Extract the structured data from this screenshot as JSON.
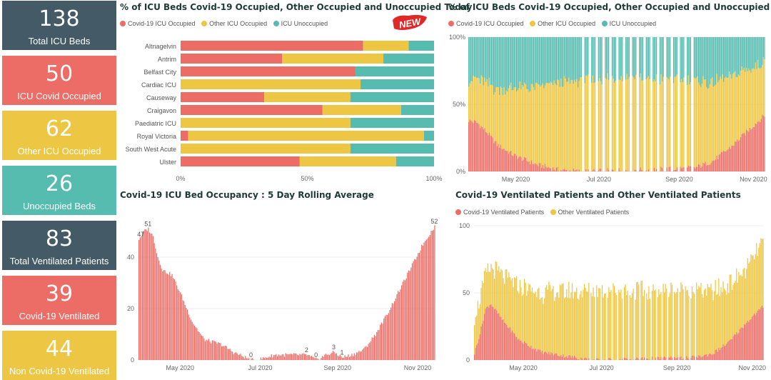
{
  "colors": {
    "covid": "#ec6d66",
    "other": "#edc743",
    "unoccupied": "#55bcaf",
    "dark": "#445a67"
  },
  "kpis": [
    {
      "value": "138",
      "label": "Total ICU Beds",
      "color": "#445a67"
    },
    {
      "value": "50",
      "label": "ICU Covid Occupied",
      "color": "#ec6d66"
    },
    {
      "value": "62",
      "label": "Other ICU Occupied",
      "color": "#edc743"
    },
    {
      "value": "26",
      "label": "Unoccupied Beds",
      "color": "#55bcaf"
    },
    {
      "value": "83",
      "label": "Total Ventilated Patients",
      "color": "#445a67"
    },
    {
      "value": "39",
      "label": "Covid-19 Ventilated",
      "color": "#ec6d66"
    },
    {
      "value": "44",
      "label": "Non Covid-19 Ventilated",
      "color": "#edc743"
    }
  ],
  "badge": "NEW",
  "chart_data": [
    {
      "id": "today",
      "type": "bar",
      "orientation": "horizontal",
      "stacked": "100%",
      "title": "% of ICU Beds Covid-19 Occupied, Other Occupied and Unoccupied Today",
      "legend": [
        "Covid-19 ICU Occupied",
        "Other ICU Occupied",
        "ICU Unoccupied"
      ],
      "categories": [
        "Altnagelvin",
        "Antrim",
        "Belfast City",
        "Cardiac ICU",
        "Causeway",
        "Craigavon",
        "Paediatric ICU",
        "Royal Victoria",
        "South West Acute",
        "Ulster"
      ],
      "series": [
        {
          "name": "Covid-19 ICU Occupied",
          "values": [
            72,
            40,
            69,
            0,
            33,
            56,
            0,
            3,
            0,
            47
          ]
        },
        {
          "name": "Other ICU Occupied",
          "values": [
            18,
            40,
            0,
            71,
            34,
            31,
            67,
            93,
            67,
            38
          ]
        },
        {
          "name": "ICU Unoccupied",
          "values": [
            10,
            20,
            31,
            29,
            33,
            13,
            33,
            4,
            33,
            15
          ]
        }
      ],
      "xticks": [
        "0%",
        "50%",
        "100%"
      ]
    },
    {
      "id": "pct_time",
      "type": "bar",
      "stacked": "100%",
      "title": "% of ICU Beds Covid-19 Occupied, Other Occupied and Unoccupied",
      "legend": [
        "Covid-19 ICU Occupied",
        "Other ICU Occupied",
        "ICU Unoccupied"
      ],
      "xticks": [
        "May 2020",
        "Jul 2020",
        "Sep 2020",
        "Nov 2020"
      ],
      "yticks": [
        "0%",
        "50%",
        "100%"
      ],
      "covid_pct_keypoints": [
        [
          0,
          38
        ],
        [
          8,
          36
        ],
        [
          15,
          30
        ],
        [
          25,
          20
        ],
        [
          40,
          12
        ],
        [
          60,
          5
        ],
        [
          80,
          1
        ],
        [
          100,
          0
        ],
        [
          140,
          1
        ],
        [
          180,
          2
        ],
        [
          200,
          3
        ],
        [
          215,
          8
        ],
        [
          230,
          18
        ],
        [
          245,
          30
        ],
        [
          260,
          42
        ]
      ],
      "other_pct_keypoints": [
        [
          0,
          30
        ],
        [
          20,
          38
        ],
        [
          40,
          50
        ],
        [
          80,
          65
        ],
        [
          140,
          70
        ],
        [
          200,
          64
        ],
        [
          240,
          48
        ],
        [
          260,
          40
        ]
      ],
      "gap_period_keypoints": [
        [
          100,
          0
        ],
        [
          110,
          6
        ],
        [
          200,
          6
        ],
        [
          210,
          0
        ]
      ]
    },
    {
      "id": "rolling",
      "type": "area",
      "title": "Covid-19 ICU Bed Occupancy : 5 Day Rolling Average",
      "xticks": [
        "May 2020",
        "Jul 2020",
        "Sep 2020",
        "Nov 2020"
      ],
      "yticks": [
        "0",
        "20",
        "40"
      ],
      "ylim": [
        0,
        55
      ],
      "labels": [
        "47",
        "51",
        "0",
        "2",
        "0",
        "3",
        "1",
        "52"
      ],
      "keypoints": [
        [
          0,
          47
        ],
        [
          4,
          50
        ],
        [
          8,
          51
        ],
        [
          12,
          48
        ],
        [
          16,
          40
        ],
        [
          20,
          35
        ],
        [
          28,
          33
        ],
        [
          35,
          26
        ],
        [
          45,
          15
        ],
        [
          55,
          8
        ],
        [
          70,
          6
        ],
        [
          80,
          3
        ],
        [
          95,
          0
        ],
        [
          100,
          0
        ],
        [
          115,
          2
        ],
        [
          135,
          2
        ],
        [
          142,
          2
        ],
        [
          150,
          0
        ],
        [
          158,
          2
        ],
        [
          165,
          3
        ],
        [
          172,
          1
        ],
        [
          180,
          2
        ],
        [
          190,
          4
        ],
        [
          200,
          10
        ],
        [
          210,
          18
        ],
        [
          220,
          27
        ],
        [
          230,
          36
        ],
        [
          240,
          45
        ],
        [
          250,
          52
        ]
      ]
    },
    {
      "id": "ventilated",
      "type": "bar",
      "stacked": true,
      "title": "Covid-19 Ventilated Patients and Other Ventilated Patients",
      "legend": [
        "Covid-19 Ventilated Patients",
        "Other Ventilated Patients"
      ],
      "xticks": [
        "May 2020",
        "Jul 2020",
        "Sep 2020",
        "Nov 2020"
      ],
      "yticks": [
        "0",
        "50",
        "100"
      ],
      "ylim": [
        0,
        100
      ],
      "covid_keypoints": [
        [
          0,
          5
        ],
        [
          5,
          20
        ],
        [
          10,
          38
        ],
        [
          15,
          42
        ],
        [
          25,
          30
        ],
        [
          40,
          15
        ],
        [
          60,
          6
        ],
        [
          90,
          2
        ],
        [
          110,
          0
        ],
        [
          150,
          1
        ],
        [
          200,
          2
        ],
        [
          215,
          5
        ],
        [
          230,
          14
        ],
        [
          245,
          28
        ],
        [
          260,
          40
        ]
      ],
      "other_keypoints": [
        [
          0,
          28
        ],
        [
          10,
          25
        ],
        [
          20,
          30
        ],
        [
          40,
          40
        ],
        [
          80,
          48
        ],
        [
          120,
          52
        ],
        [
          160,
          50
        ],
        [
          200,
          50
        ],
        [
          230,
          42
        ],
        [
          245,
          40
        ],
        [
          260,
          48
        ]
      ]
    }
  ]
}
